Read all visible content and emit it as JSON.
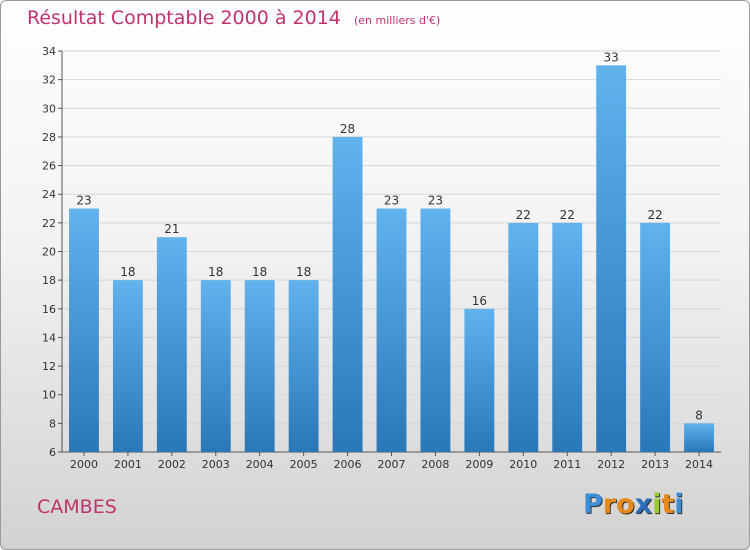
{
  "title": "Résultat Comptable 2000 à 2014",
  "unit_note": "(en milliers d'€)",
  "town": "CAMBES",
  "logo": {
    "text": "Proxiti",
    "letters": [
      "P",
      "r",
      "o",
      "x",
      "i",
      "t",
      "i"
    ],
    "colors": [
      "#3a8fd9",
      "#e88a1a",
      "#e88a1a",
      "#2a6fbf",
      "#9acd32",
      "#e88a1a",
      "#3a8fd9"
    ]
  },
  "colors": {
    "bar_light": "#62b2ee",
    "bar_dark": "#2a77b8",
    "accent": "#c0336a"
  },
  "chart_data": {
    "type": "bar",
    "categories": [
      "2000",
      "2001",
      "2002",
      "2003",
      "2004",
      "2005",
      "2006",
      "2007",
      "2008",
      "2009",
      "2010",
      "2011",
      "2012",
      "2013",
      "2014"
    ],
    "values": [
      23,
      18,
      21,
      18,
      18,
      18,
      28,
      23,
      23,
      16,
      22,
      22,
      33,
      22,
      8
    ],
    "ylim": [
      6,
      34
    ],
    "yticks": [
      6,
      8,
      10,
      12,
      14,
      16,
      18,
      20,
      22,
      24,
      26,
      28,
      30,
      32,
      34
    ],
    "grid": true,
    "title": "Résultat Comptable 2000 à 2014",
    "xlabel": "",
    "ylabel": ""
  }
}
